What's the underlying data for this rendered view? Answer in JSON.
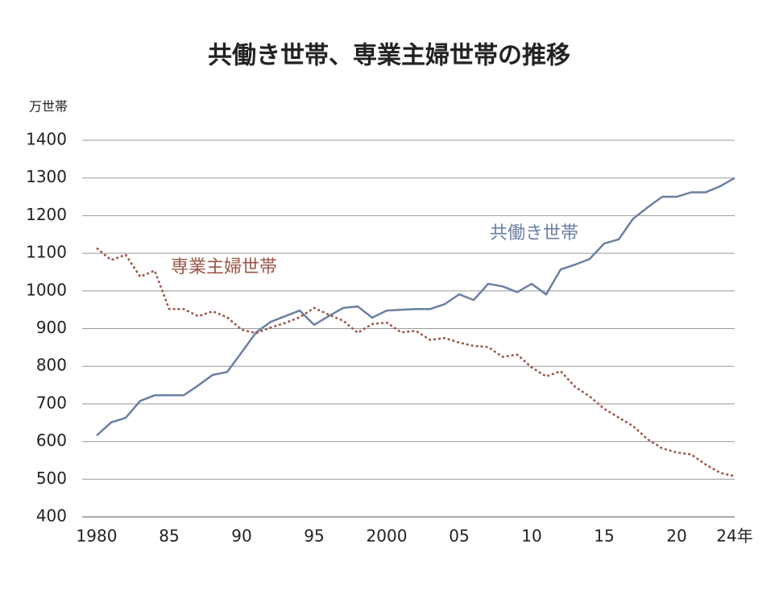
{
  "chart_data": {
    "type": "line",
    "title": "共働き世帯、専業主婦世帯の推移",
    "y_unit": "万世帯",
    "x": [
      1980,
      1981,
      1982,
      1983,
      1984,
      1985,
      1986,
      1987,
      1988,
      1989,
      1990,
      1991,
      1992,
      1993,
      1994,
      1995,
      1996,
      1997,
      1998,
      1999,
      2000,
      2001,
      2002,
      2003,
      2004,
      2005,
      2006,
      2007,
      2008,
      2009,
      2010,
      2011,
      2012,
      2013,
      2014,
      2015,
      2016,
      2017,
      2018,
      2019,
      2020,
      2021,
      2022,
      2023,
      2024
    ],
    "series": [
      {
        "name": "共働き世帯",
        "color": "#6b7fa3",
        "dashed": false,
        "values": [
          616,
          651,
          663,
          708,
          723,
          723,
          723,
          749,
          777,
          785,
          837,
          890,
          918,
          933,
          948,
          910,
          933,
          955,
          959,
          929,
          948,
          950,
          952,
          952,
          965,
          991,
          976,
          1019,
          1012,
          997,
          1019,
          991,
          1057,
          1070,
          1085,
          1126,
          1137,
          1192,
          1222,
          1250,
          1250,
          1262,
          1262,
          1278,
          1300
        ]
      },
      {
        "name": "専業主婦世帯",
        "color": "#9b5648",
        "dashed": true,
        "values": [
          1114,
          1082,
          1096,
          1038,
          1054,
          952,
          952,
          933,
          946,
          930,
          897,
          888,
          903,
          915,
          930,
          955,
          937,
          921,
          889,
          912,
          916,
          890,
          894,
          870,
          875,
          863,
          854,
          851,
          825,
          831,
          797,
          773,
          787,
          745,
          720,
          687,
          664,
          641,
          606,
          582,
          571,
          566,
          539,
          517,
          508
        ]
      }
    ],
    "xlim": [
      1979,
      2024
    ],
    "xticks": [
      {
        "value": 1980,
        "label": "1980"
      },
      {
        "value": 1985,
        "label": "85"
      },
      {
        "value": 1990,
        "label": "90"
      },
      {
        "value": 1995,
        "label": "95"
      },
      {
        "value": 2000,
        "label": "2000"
      },
      {
        "value": 2005,
        "label": "05"
      },
      {
        "value": 2010,
        "label": "10"
      },
      {
        "value": 2015,
        "label": "15"
      },
      {
        "value": 2020,
        "label": "20"
      },
      {
        "value": 2024,
        "label": "24年"
      }
    ],
    "ylim": [
      400,
      1400
    ],
    "yticks": [
      400,
      500,
      600,
      700,
      800,
      900,
      1000,
      1100,
      1200,
      1300,
      1400
    ],
    "grid": true
  }
}
